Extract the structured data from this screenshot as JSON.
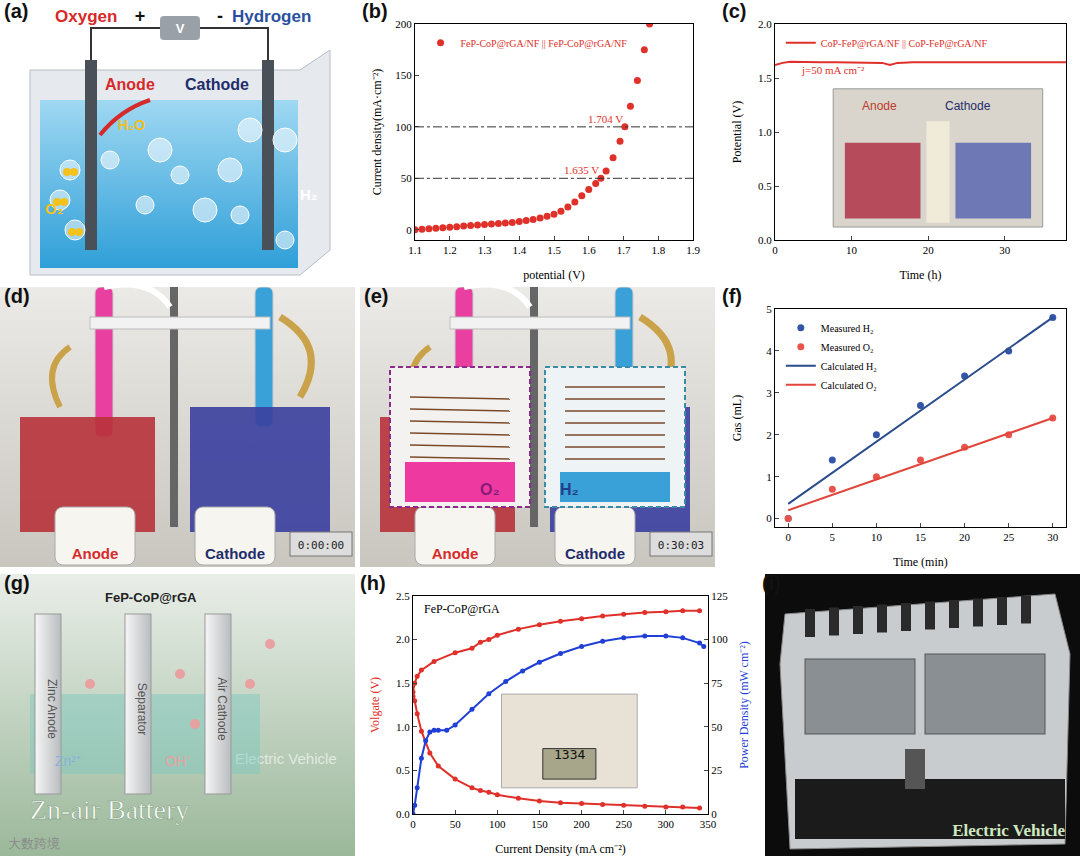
{
  "chart_data": [
    {
      "panel": "(b)",
      "type": "scatter",
      "xlabel": "potential (V)",
      "ylabel": "Current density(mA·cm⁻²)",
      "x": [
        1.1,
        1.12,
        1.14,
        1.16,
        1.18,
        1.2,
        1.22,
        1.24,
        1.26,
        1.28,
        1.3,
        1.32,
        1.34,
        1.36,
        1.38,
        1.4,
        1.42,
        1.44,
        1.46,
        1.48,
        1.5,
        1.52,
        1.54,
        1.56,
        1.58,
        1.6,
        1.62,
        1.635,
        1.65,
        1.67,
        1.69,
        1.704,
        1.72,
        1.74,
        1.76,
        1.775
      ],
      "series": [
        {
          "name": "FeP-CoP@rGA/NF || FeP-CoP@rGA/NF",
          "color": "#e0302a",
          "marker": "circle",
          "values": [
            0,
            0.5,
            1,
            1.5,
            2,
            2.5,
            3,
            3.5,
            4,
            4.5,
            5,
            5.5,
            6,
            6.5,
            7,
            8,
            9,
            10,
            11.5,
            13,
            15,
            18,
            22,
            27,
            33,
            39,
            45,
            50,
            57,
            70,
            86,
            100,
            120,
            145,
            175,
            200
          ]
        }
      ],
      "xlim": [
        1.1,
        1.9
      ],
      "xticks": [
        1.1,
        1.2,
        1.3,
        1.4,
        1.5,
        1.6,
        1.7,
        1.8,
        1.9
      ],
      "ylim": [
        -10,
        200
      ],
      "yticks": [
        0,
        50,
        100,
        150,
        200
      ],
      "reference_lines": [
        50,
        100
      ],
      "annotations": [
        {
          "text": "1.635 V",
          "x": 1.635,
          "y": 50
        },
        {
          "text": "1.704 V",
          "x": 1.704,
          "y": 100
        }
      ],
      "legend": "upper left",
      "grid": false
    },
    {
      "panel": "(c)",
      "type": "line",
      "xlabel": "Time (h)",
      "ylabel": "Potential (V)",
      "x": [
        0,
        1,
        2,
        4,
        6,
        8,
        10,
        12,
        14,
        15,
        16,
        18,
        20,
        22,
        24,
        26,
        28,
        30,
        32,
        34,
        36,
        38
      ],
      "series": [
        {
          "name": "CoP-FeP@rGA/NF || CoP-FeP@rGA/NF",
          "color": "#e0302a",
          "values": [
            1.62,
            1.64,
            1.65,
            1.645,
            1.645,
            1.645,
            1.645,
            1.645,
            1.64,
            1.62,
            1.64,
            1.645,
            1.645,
            1.645,
            1.64,
            1.645,
            1.645,
            1.64,
            1.645,
            1.645,
            1.64,
            1.645
          ]
        }
      ],
      "xlim": [
        0,
        38
      ],
      "xticks": [
        0,
        10,
        20,
        30
      ],
      "ylim": [
        0,
        2
      ],
      "yticks": [
        {
          "value": 0,
          "label": "0.0"
        },
        {
          "value": 0.5,
          "label": "0.5"
        },
        {
          "value": 1,
          "label": "1.0"
        },
        {
          "value": 1.5,
          "label": "1.5"
        },
        {
          "value": 2,
          "label": "2.0"
        }
      ],
      "annotations": [
        {
          "text": "j=50 mA cm⁻²",
          "x": 12,
          "y": 1.5
        }
      ],
      "inset_labels": [
        "Anode",
        "Cathode"
      ],
      "legend": "upper left",
      "grid": false
    },
    {
      "panel": "(f)",
      "type": "scatter",
      "xlabel": "Time (min)",
      "ylabel": "Gas (mL)",
      "series": [
        {
          "name": "Measured H₂",
          "type": "scatter",
          "marker": "circle",
          "color": "#3556a8",
          "x": [
            0,
            5,
            10,
            15,
            20,
            25,
            30
          ],
          "values": [
            0,
            1.4,
            2.0,
            2.7,
            3.4,
            4.0,
            4.8
          ]
        },
        {
          "name": "Measured O₂",
          "type": "scatter",
          "marker": "circle",
          "color": "#e8534a",
          "x": [
            0,
            5,
            10,
            15,
            20,
            25,
            30
          ],
          "values": [
            0,
            0.7,
            1.0,
            1.4,
            1.7,
            2.0,
            2.4
          ]
        },
        {
          "name": "Calculated H₂",
          "type": "line",
          "color": "#2b4c8c",
          "x": [
            0,
            30
          ],
          "values": [
            0.35,
            4.8
          ]
        },
        {
          "name": "Calculated O₂",
          "type": "line",
          "color": "#e0463c",
          "x": [
            0,
            30
          ],
          "values": [
            0.2,
            2.4
          ]
        }
      ],
      "xlim": [
        -1.5,
        31.5
      ],
      "xticks": [
        0,
        5,
        10,
        15,
        20,
        25,
        30
      ],
      "ylim": [
        -0.2,
        5
      ],
      "yticks": [
        0,
        1,
        2,
        3,
        4,
        5
      ],
      "legend": "upper left",
      "grid": false
    },
    {
      "panel": "(h)",
      "type": "line",
      "title": "FeP-CoP@rGA",
      "xlabel": "Current Density (mA cm⁻²)",
      "ylabel": "Volgate (V)",
      "y2label": "Power Density (mW cm⁻²)",
      "series": [
        {
          "color": "#e0302a",
          "marker": "circle",
          "x": [
            0,
            2,
            5,
            10,
            25,
            50,
            70,
            80,
            90,
            100,
            125,
            150,
            175,
            200,
            225,
            250,
            275,
            300,
            320,
            340
          ],
          "values": [
            1.4,
            1.5,
            1.58,
            1.65,
            1.75,
            1.85,
            1.9,
            1.97,
            2.0,
            2.05,
            2.12,
            2.17,
            2.21,
            2.24,
            2.27,
            2.29,
            2.31,
            2.32,
            2.33,
            2.33
          ]
        },
        {
          "color": "#e0302a",
          "marker": "circle",
          "x": [
            0,
            2,
            5,
            10,
            20,
            30,
            50,
            70,
            80,
            90,
            100,
            125,
            150,
            175,
            200,
            225,
            250,
            275,
            300,
            320,
            340
          ],
          "values": [
            1.35,
            1.3,
            1.15,
            0.95,
            0.7,
            0.55,
            0.4,
            0.3,
            0.27,
            0.25,
            0.22,
            0.18,
            0.15,
            0.13,
            0.12,
            0.11,
            0.1,
            0.09,
            0.08,
            0.08,
            0.07
          ]
        },
        {
          "color": "#1f3fd6",
          "marker": "circle",
          "axis": "y2",
          "x": [
            0,
            2,
            5,
            10,
            15,
            20,
            25,
            30,
            40,
            50,
            70,
            90,
            110,
            130,
            150,
            175,
            200,
            225,
            250,
            275,
            300,
            320,
            340,
            345
          ],
          "values": [
            0,
            5,
            15,
            32,
            42,
            47,
            48,
            48,
            48,
            51,
            60,
            69,
            76,
            82,
            87,
            92,
            96,
            99,
            101,
            102,
            102,
            101,
            98,
            96
          ]
        }
      ],
      "xlim": [
        0,
        350
      ],
      "xticks": [
        0,
        50,
        100,
        150,
        200,
        250,
        300,
        350
      ],
      "ylim": [
        0,
        2.5
      ],
      "yticks": [
        {
          "value": 0,
          "label": "0.0"
        },
        {
          "value": 0.5,
          "label": "0.5"
        },
        {
          "value": 1,
          "label": "1.0"
        },
        {
          "value": 1.5,
          "label": "1.5"
        },
        {
          "value": 2,
          "label": "2.0"
        },
        {
          "value": 2.5,
          "label": "2.5"
        }
      ],
      "y2lim": [
        0,
        125
      ],
      "y2ticks": [
        0,
        25,
        50,
        75,
        100,
        125
      ],
      "inset_text": "1334",
      "grid": false
    }
  ],
  "panels": {
    "a": {
      "label": "(a)",
      "oxygen": "Oxygen",
      "plus": "+",
      "voltmeter": "V",
      "minus": "-",
      "hydrogen": "Hydrogen",
      "anode": "Anode",
      "cathode": "Cathode",
      "water": "H₂O",
      "oxygen_gas": "O₂",
      "hydrogen_gas": "H₂"
    },
    "d": {
      "label": "(d)",
      "anode": "Anode",
      "cathode": "Cathode",
      "timer": "0:00:00"
    },
    "e": {
      "label": "(e)",
      "anode": "Anode",
      "cathode": "Cathode",
      "oxygen_gas": "O₂",
      "hydrogen_gas": "H₂",
      "timer": "0:30:03"
    },
    "g": {
      "label": "(g)",
      "catalyst": "FeP-CoP@rGA",
      "electrodes": [
        "Zinc Anode",
        "Separator",
        "Air Cathode"
      ],
      "ions": [
        "Zn²⁺",
        "OH⁻"
      ],
      "title": "Zn-air Battery",
      "background_text": "Electric Vehicle",
      "watermark": "大数跨境"
    },
    "i": {
      "label": "(i)",
      "caption": "Electric Vehicle"
    }
  }
}
